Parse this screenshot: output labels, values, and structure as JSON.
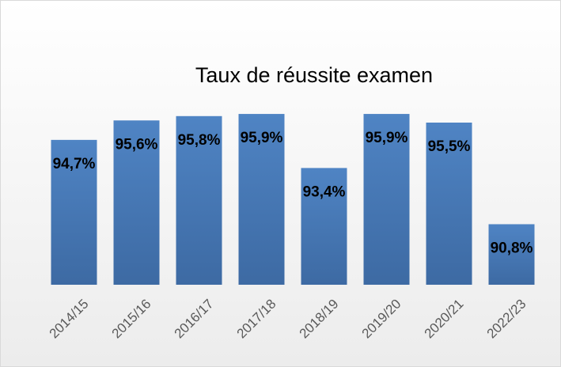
{
  "chart_data": {
    "type": "bar",
    "title": "Taux de réussite examen",
    "categories": [
      "2014/15",
      "2015/16",
      "2016/17",
      "2017/18",
      "2018/19",
      "2019/20",
      "2020/21",
      "2022/23"
    ],
    "values": [
      94.7,
      95.6,
      95.8,
      95.9,
      93.4,
      95.9,
      95.5,
      90.8
    ],
    "value_labels": [
      "94,7%",
      "95,6%",
      "95,8%",
      "95,9%",
      "93,4%",
      "95,9%",
      "95,5%",
      "90,8%"
    ],
    "color": "#4a7ebb",
    "ylim": [
      88,
      97
    ]
  }
}
